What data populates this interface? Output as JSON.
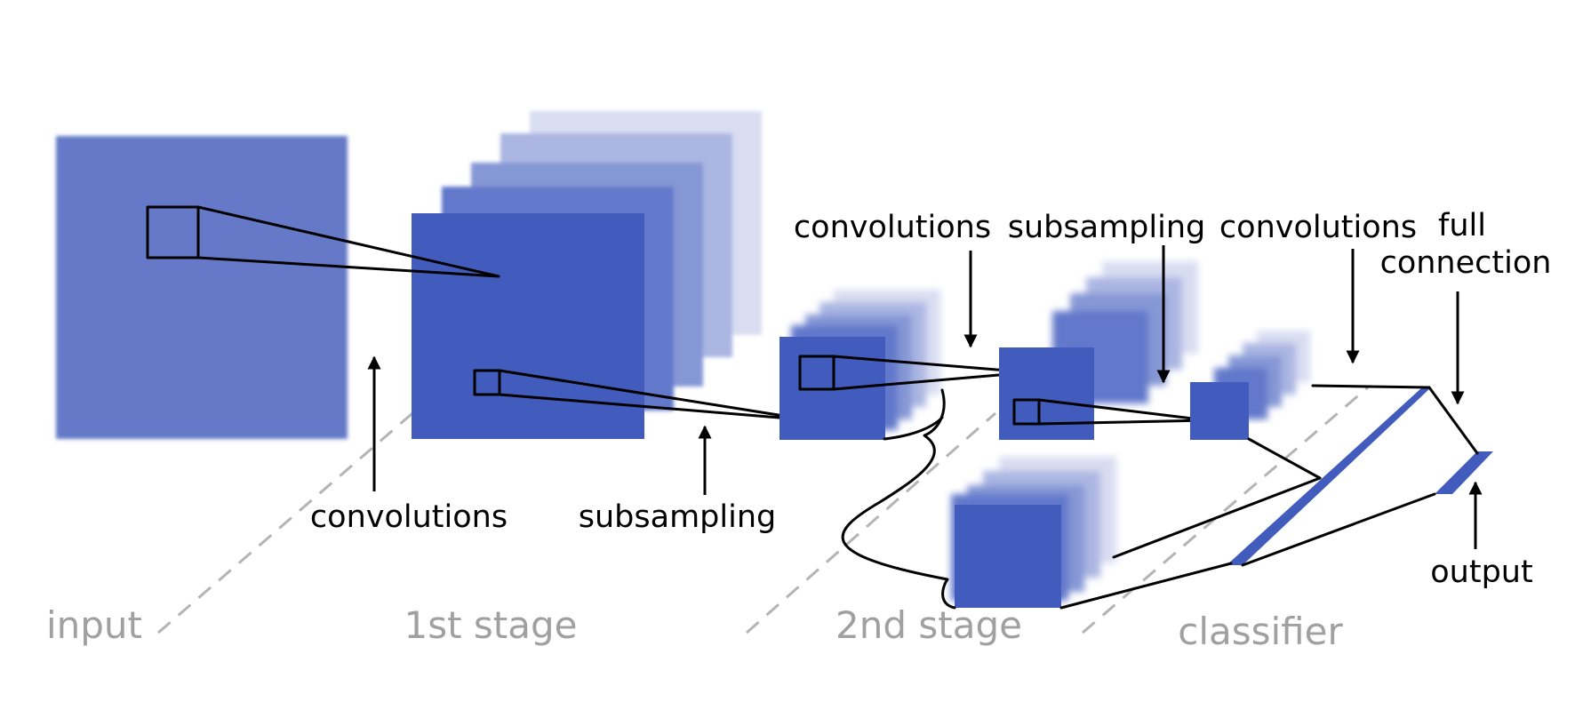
{
  "colors": {
    "map_dark": "#415cbd",
    "map_input": "#6579c8",
    "map_light": "#d9ddf1",
    "ink": "#000000",
    "stage_text": "#a0a0a0",
    "divider": "#b4b4b4"
  },
  "stages": {
    "input": "input",
    "first": "1st stage",
    "second": "2nd stage",
    "classifier": "classifier"
  },
  "operations": {
    "convolutions_1": "convolutions",
    "subsampling_1": "subsampling",
    "convolutions_2": "convolutions",
    "subsampling_2": "subsampling",
    "convolutions_3": "convolutions",
    "full_connection_line1": "full",
    "full_connection_line2": "connection",
    "output": "output"
  }
}
